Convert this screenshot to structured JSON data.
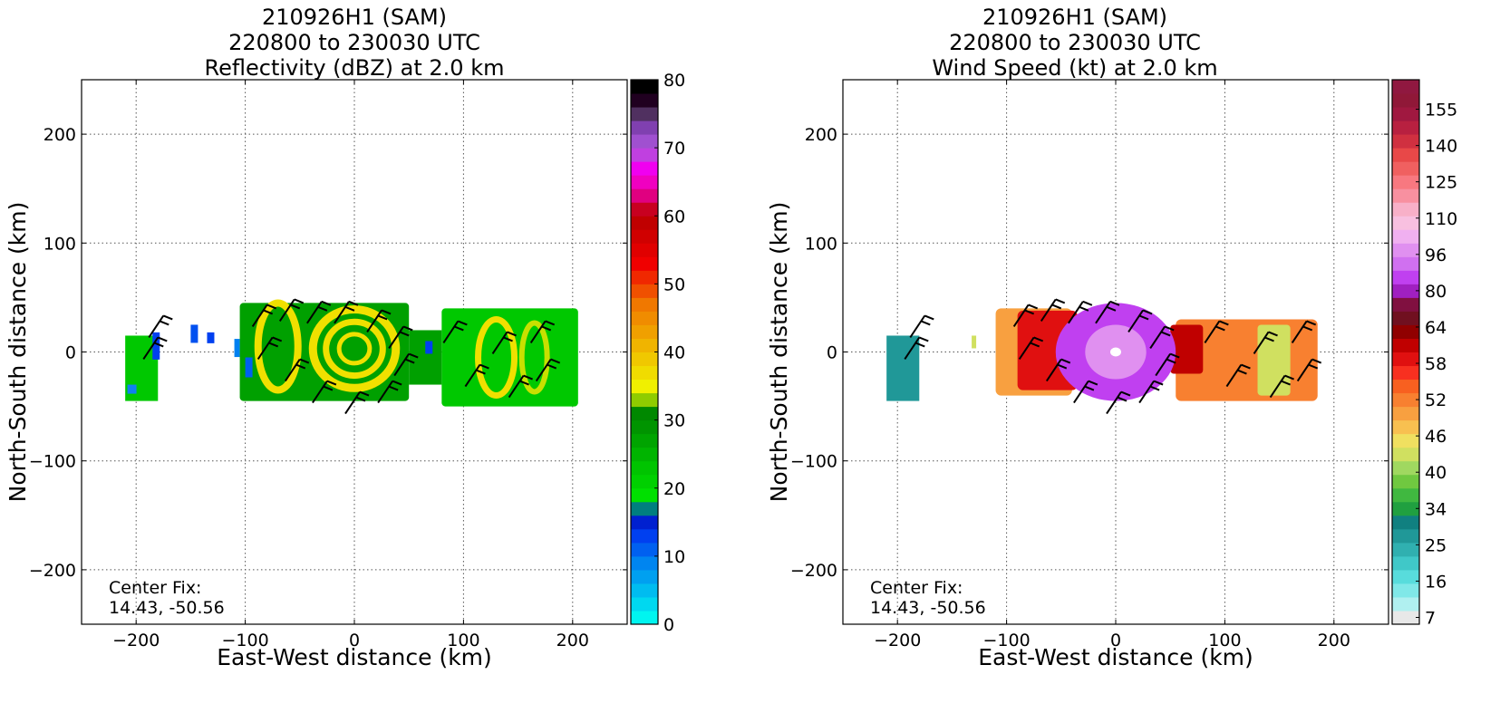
{
  "chart_data": [
    {
      "type": "heatmap",
      "title_lines": [
        "210926H1 (SAM)",
        "220800 to 230030 UTC",
        "Reflectivity (dBZ) at 2.0 km"
      ],
      "xlabel": "East-West distance (km)",
      "ylabel": "North-South distance (km)",
      "xlim": [
        -250,
        250
      ],
      "ylim": [
        -250,
        250
      ],
      "xticks": [
        -200,
        -100,
        0,
        100,
        200
      ],
      "yticks": [
        200,
        100,
        0,
        -100,
        -200
      ],
      "grid": true,
      "annotation": [
        "Center Fix:",
        "14.43, -50.56"
      ],
      "colorbar": {
        "min": 0,
        "max": 80,
        "tick_labels": [
          "0",
          "10",
          "20",
          "30",
          "40",
          "50",
          "60",
          "70",
          "80"
        ],
        "tick_values": [
          0,
          10,
          20,
          30,
          40,
          50,
          60,
          70,
          80
        ],
        "colors": [
          "#00f5f0",
          "#00d8f0",
          "#00bcf0",
          "#00a0f0",
          "#0085f0",
          "#0060f0",
          "#0040f0",
          "#0020d0",
          "#007f7f",
          "#00e000",
          "#00d000",
          "#00c400",
          "#00b400",
          "#00a400",
          "#009400",
          "#008800",
          "#8fcc00",
          "#f0f000",
          "#f0dc00",
          "#f0c800",
          "#f0b400",
          "#f0a000",
          "#f08c00",
          "#f07800",
          "#f05000",
          "#f02800",
          "#f00000",
          "#e00000",
          "#d00000",
          "#c00000",
          "#c80020",
          "#e00080",
          "#f000c0",
          "#f000f0",
          "#c040e0",
          "#a050d0",
          "#8040b0",
          "#503060",
          "#200020",
          "#000000"
        ]
      },
      "field_description_colors": [
        "#00a000",
        "#f0e000",
        "#00c800",
        "#0040f0"
      ]
    },
    {
      "type": "heatmap",
      "title_lines": [
        "210926H1 (SAM)",
        "220800 to 230030 UTC",
        "Wind Speed (kt) at 2.0 km"
      ],
      "xlabel": "East-West distance (km)",
      "ylabel": "North-South distance (km)",
      "xlim": [
        -250,
        250
      ],
      "ylim": [
        -250,
        250
      ],
      "xticks": [
        -200,
        -100,
        0,
        100,
        200
      ],
      "yticks": [
        200,
        100,
        0,
        -100,
        -200
      ],
      "grid": true,
      "annotation": [
        "Center Fix:",
        "14.43, -50.56"
      ],
      "colorbar": {
        "tick_labels": [
          "7",
          "16",
          "25",
          "34",
          "40",
          "46",
          "52",
          "58",
          "64",
          "80",
          "96",
          "110",
          "125",
          "140",
          "155"
        ],
        "colors": [
          "#e8e8e8",
          "#b0f0f0",
          "#80e8e8",
          "#58dcdc",
          "#40c8c8",
          "#30b0b0",
          "#209898",
          "#108080",
          "#20a040",
          "#40b840",
          "#70c840",
          "#a0d860",
          "#d0e060",
          "#f0e060",
          "#f8c050",
          "#f8a040",
          "#f88030",
          "#f86020",
          "#f83020",
          "#e01010",
          "#c00000",
          "#900000",
          "#701020",
          "#801040",
          "#a020c0",
          "#c040f0",
          "#d070f0",
          "#e090f0",
          "#f0b0f0",
          "#f8c0e0",
          "#f8b0c8",
          "#f890a0",
          "#f87880",
          "#f06060",
          "#e84848",
          "#d03040",
          "#b82040",
          "#a01840",
          "#901838",
          "#901840"
        ]
      }
    }
  ]
}
